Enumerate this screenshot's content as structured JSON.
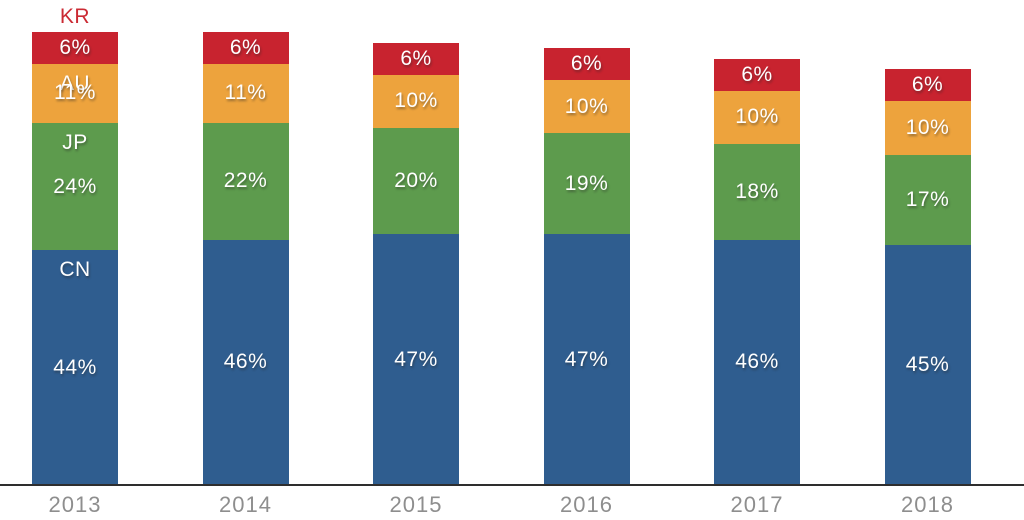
{
  "chart_data": {
    "type": "bar",
    "subtype": "stacked-vertical-percent",
    "categories": [
      "2013",
      "2014",
      "2015",
      "2016",
      "2017",
      "2018"
    ],
    "series": [
      {
        "name": "CN",
        "color": "#2f5d8f",
        "values": [
          44,
          46,
          47,
          47,
          46,
          45
        ]
      },
      {
        "name": "JP",
        "color": "#5d9b4d",
        "values": [
          24,
          22,
          20,
          19,
          18,
          17
        ]
      },
      {
        "name": "AU",
        "color": "#eda33d",
        "values": [
          11,
          11,
          10,
          10,
          10,
          10
        ]
      },
      {
        "name": "KR",
        "color": "#c8232f",
        "values": [
          6,
          6,
          6,
          6,
          6,
          6
        ]
      }
    ],
    "value_suffix": "%",
    "title": "",
    "xlabel": "",
    "ylabel": "",
    "grid": false,
    "legend_position": "inline-first-bar",
    "series_name_labels_shown_on": "first-bar-only",
    "top_series_label_above_bar": "KR"
  },
  "axis": {
    "line_color": "#2e2e2e",
    "category_label_color": "#8e8e8e",
    "top_label_color": "#cb2a33"
  }
}
